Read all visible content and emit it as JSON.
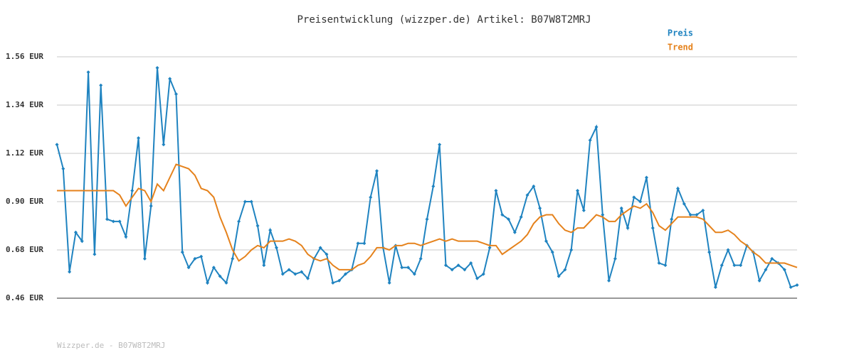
{
  "chart_data": {
    "type": "line",
    "title": "Preisentwicklung (wizzper.de) Artikel: B07W8T2MRJ",
    "footer": "Wizzper.de - B07W8T2MRJ",
    "ylim": [
      0.46,
      1.56
    ],
    "yticks": [
      {
        "value": 0.46,
        "label": "0.46 EUR"
      },
      {
        "value": 0.68,
        "label": "0.68 EUR"
      },
      {
        "value": 0.9,
        "label": "0.90 EUR"
      },
      {
        "value": 1.12,
        "label": "1.12 EUR"
      },
      {
        "value": 1.34,
        "label": "1.34 EUR"
      },
      {
        "value": 1.56,
        "label": "1.56 EUR"
      }
    ],
    "grid": true,
    "legend": "top-right",
    "series": [
      {
        "name": "Preis",
        "color": "#1f83c0",
        "markers": true,
        "values": [
          1.16,
          1.05,
          0.58,
          0.76,
          0.72,
          1.49,
          0.66,
          1.43,
          0.82,
          0.81,
          0.81,
          0.74,
          0.95,
          1.19,
          0.64,
          0.88,
          1.51,
          1.16,
          1.46,
          1.39,
          0.67,
          0.6,
          0.64,
          0.65,
          0.53,
          0.6,
          0.56,
          0.53,
          0.64,
          0.81,
          0.9,
          0.9,
          0.79,
          0.61,
          0.77,
          0.69,
          0.57,
          0.59,
          0.57,
          0.58,
          0.55,
          0.64,
          0.69,
          0.66,
          0.53,
          0.54,
          0.57,
          0.59,
          0.71,
          0.71,
          0.92,
          1.04,
          0.69,
          0.53,
          0.7,
          0.6,
          0.6,
          0.57,
          0.64,
          0.82,
          0.97,
          1.16,
          0.61,
          0.59,
          0.61,
          0.59,
          0.62,
          0.55,
          0.57,
          0.69,
          0.95,
          0.84,
          0.82,
          0.76,
          0.83,
          0.93,
          0.97,
          0.87,
          0.72,
          0.67,
          0.56,
          0.59,
          0.68,
          0.95,
          0.86,
          1.18,
          1.24,
          0.84,
          0.54,
          0.64,
          0.87,
          0.78,
          0.92,
          0.9,
          1.01,
          0.78,
          0.62,
          0.61,
          0.82,
          0.96,
          0.89,
          0.84,
          0.84,
          0.86,
          0.67,
          0.51,
          0.61,
          0.68,
          0.61,
          0.61,
          0.7,
          0.67,
          0.54,
          0.59,
          0.64,
          0.62,
          0.59,
          0.51,
          0.52
        ]
      },
      {
        "name": "Trend",
        "color": "#e5821c",
        "markers": false,
        "values": [
          0.95,
          0.95,
          0.95,
          0.95,
          0.95,
          0.95,
          0.95,
          0.95,
          0.95,
          0.95,
          0.93,
          0.88,
          0.92,
          0.96,
          0.95,
          0.9,
          0.98,
          0.95,
          1.01,
          1.07,
          1.06,
          1.05,
          1.02,
          0.96,
          0.95,
          0.92,
          0.83,
          0.76,
          0.68,
          0.63,
          0.65,
          0.68,
          0.7,
          0.69,
          0.72,
          0.72,
          0.72,
          0.73,
          0.72,
          0.7,
          0.66,
          0.64,
          0.63,
          0.64,
          0.61,
          0.59,
          0.59,
          0.59,
          0.61,
          0.62,
          0.65,
          0.69,
          0.69,
          0.68,
          0.7,
          0.7,
          0.71,
          0.71,
          0.7,
          0.71,
          0.72,
          0.73,
          0.72,
          0.73,
          0.72,
          0.72,
          0.72,
          0.72,
          0.71,
          0.7,
          0.7,
          0.66,
          0.68,
          0.7,
          0.72,
          0.75,
          0.8,
          0.83,
          0.84,
          0.84,
          0.8,
          0.77,
          0.76,
          0.78,
          0.78,
          0.81,
          0.84,
          0.83,
          0.81,
          0.81,
          0.84,
          0.86,
          0.88,
          0.87,
          0.89,
          0.85,
          0.79,
          0.77,
          0.8,
          0.83,
          0.83,
          0.83,
          0.83,
          0.82,
          0.79,
          0.76,
          0.76,
          0.77,
          0.75,
          0.72,
          0.7,
          0.67,
          0.65,
          0.62,
          0.62,
          0.62,
          0.62,
          0.61,
          0.6
        ]
      }
    ]
  }
}
